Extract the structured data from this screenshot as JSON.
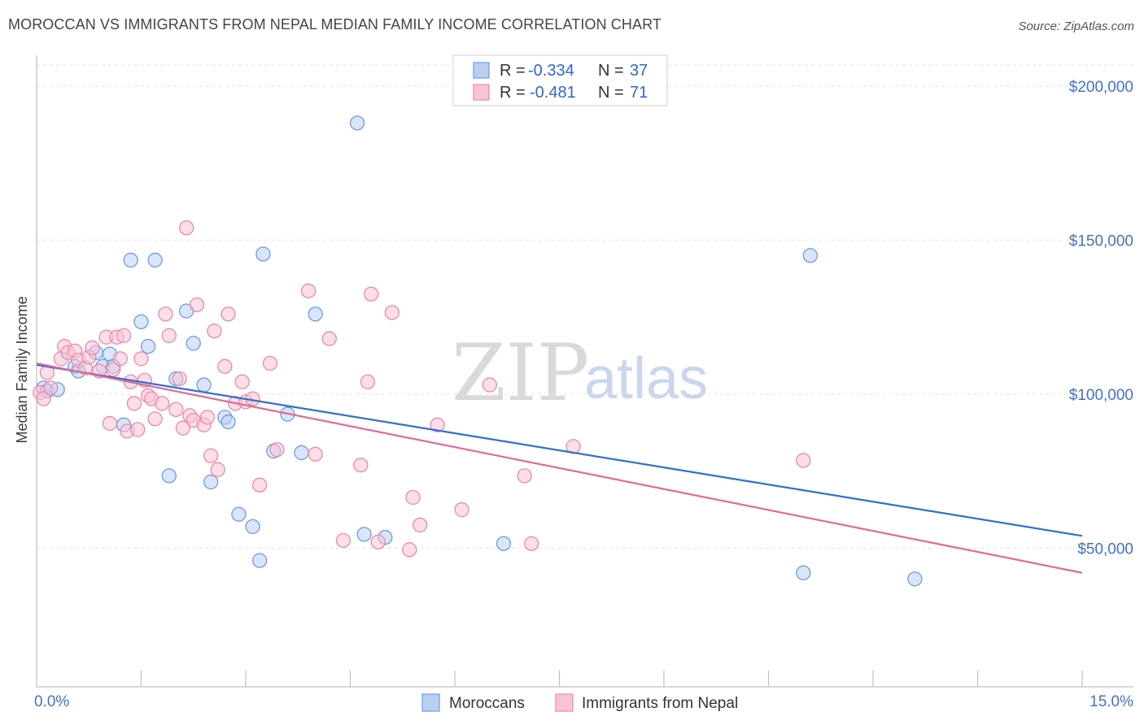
{
  "header": {
    "title": "MOROCCAN VS IMMIGRANTS FROM NEPAL MEDIAN FAMILY INCOME CORRELATION CHART",
    "source": "Source: ZipAtlas.com"
  },
  "watermark": {
    "zip": "ZIP",
    "atlas": "atlas"
  },
  "chart_data": {
    "type": "scatter",
    "xlabel": "",
    "ylabel": "Median Family Income",
    "xlim": [
      0,
      15
    ],
    "ylim": [
      5000,
      210000
    ],
    "x_tick_labels": {
      "min": "0.0%",
      "max": "15.0%"
    },
    "y_ticks": [
      {
        "value": 50000,
        "label": "$50,000"
      },
      {
        "value": 100000,
        "label": "$100,000"
      },
      {
        "value": 150000,
        "label": "$150,000"
      },
      {
        "value": 200000,
        "label": "$200,000"
      }
    ],
    "grid": true,
    "legend_position": "top-center",
    "series": [
      {
        "name": "Moroccans",
        "color": "#6f9be0",
        "fill": "#b9cff2",
        "line_color": "#2f6fd1",
        "stats": {
          "r_label": "R =",
          "r": "-0.334",
          "n_label": "N =",
          "n": "37"
        },
        "trend": {
          "x0": 0,
          "y0": 109500,
          "x1": 15,
          "y1": 54000
        },
        "points": [
          [
            0.1,
            102000
          ],
          [
            0.15,
            101000
          ],
          [
            0.55,
            109000
          ],
          [
            0.6,
            107500
          ],
          [
            0.85,
            113500
          ],
          [
            0.95,
            109000
          ],
          [
            1.05,
            113000
          ],
          [
            1.1,
            109000
          ],
          [
            1.25,
            90000
          ],
          [
            1.35,
            143500
          ],
          [
            1.5,
            123500
          ],
          [
            1.6,
            115500
          ],
          [
            1.7,
            143500
          ],
          [
            1.9,
            73500
          ],
          [
            2.0,
            105000
          ],
          [
            2.15,
            127000
          ],
          [
            2.25,
            116500
          ],
          [
            2.4,
            103000
          ],
          [
            2.5,
            71500
          ],
          [
            2.7,
            92500
          ],
          [
            2.75,
            91000
          ],
          [
            2.9,
            61000
          ],
          [
            3.1,
            57000
          ],
          [
            3.2,
            46000
          ],
          [
            3.25,
            145500
          ],
          [
            3.4,
            81500
          ],
          [
            3.6,
            93500
          ],
          [
            3.8,
            81000
          ],
          [
            4.0,
            126000
          ],
          [
            4.6,
            188000
          ],
          [
            4.7,
            54500
          ],
          [
            5.0,
            53500
          ],
          [
            6.7,
            51500
          ],
          [
            11.1,
            145000
          ],
          [
            11.0,
            42000
          ],
          [
            12.6,
            40000
          ],
          [
            0.3,
            101500
          ]
        ]
      },
      {
        "name": "Immigrants from Nepal",
        "color": "#e88aab",
        "fill": "#f7c3d5",
        "line_color": "#e06a95",
        "stats": {
          "r_label": "R =",
          "r": "-0.481",
          "n_label": "N =",
          "n": "71"
        },
        "trend": {
          "x0": 0,
          "y0": 110000,
          "x1": 15,
          "y1": 42000
        },
        "points": [
          [
            0.05,
            100500
          ],
          [
            0.1,
            98500
          ],
          [
            0.15,
            107000
          ],
          [
            0.2,
            102000
          ],
          [
            0.35,
            111500
          ],
          [
            0.4,
            115500
          ],
          [
            0.45,
            113500
          ],
          [
            0.55,
            114000
          ],
          [
            0.6,
            111000
          ],
          [
            0.7,
            108500
          ],
          [
            0.75,
            112000
          ],
          [
            0.8,
            115000
          ],
          [
            0.9,
            107500
          ],
          [
            1.0,
            118500
          ],
          [
            1.05,
            90500
          ],
          [
            1.1,
            108000
          ],
          [
            1.15,
            118500
          ],
          [
            1.2,
            111500
          ],
          [
            1.25,
            119000
          ],
          [
            1.3,
            88000
          ],
          [
            1.35,
            104000
          ],
          [
            1.4,
            97000
          ],
          [
            1.45,
            88500
          ],
          [
            1.5,
            111500
          ],
          [
            1.55,
            104500
          ],
          [
            1.6,
            99500
          ],
          [
            1.65,
            98500
          ],
          [
            1.7,
            92000
          ],
          [
            1.8,
            97000
          ],
          [
            1.85,
            126000
          ],
          [
            1.9,
            119000
          ],
          [
            2.0,
            95000
          ],
          [
            2.05,
            105000
          ],
          [
            2.1,
            89000
          ],
          [
            2.15,
            154000
          ],
          [
            2.2,
            93000
          ],
          [
            2.25,
            91500
          ],
          [
            2.3,
            129000
          ],
          [
            2.4,
            90000
          ],
          [
            2.45,
            92500
          ],
          [
            2.5,
            80000
          ],
          [
            2.55,
            120500
          ],
          [
            2.6,
            75500
          ],
          [
            2.7,
            109000
          ],
          [
            2.75,
            126000
          ],
          [
            2.85,
            97000
          ],
          [
            2.95,
            104000
          ],
          [
            3.0,
            97500
          ],
          [
            3.1,
            98500
          ],
          [
            3.2,
            70500
          ],
          [
            3.35,
            110000
          ],
          [
            3.45,
            82000
          ],
          [
            3.9,
            133500
          ],
          [
            4.0,
            80500
          ],
          [
            4.2,
            118000
          ],
          [
            4.4,
            52500
          ],
          [
            4.65,
            77000
          ],
          [
            4.75,
            104000
          ],
          [
            4.8,
            132500
          ],
          [
            4.9,
            52000
          ],
          [
            5.1,
            126500
          ],
          [
            5.35,
            49500
          ],
          [
            5.4,
            66500
          ],
          [
            5.5,
            57500
          ],
          [
            5.75,
            90000
          ],
          [
            6.1,
            62500
          ],
          [
            6.5,
            103000
          ],
          [
            7.0,
            73500
          ],
          [
            7.1,
            51500
          ],
          [
            7.7,
            83000
          ],
          [
            11.0,
            78500
          ]
        ]
      }
    ]
  },
  "bottom_legend": {
    "moroccans": "Moroccans",
    "nepal": "Immigrants from Nepal"
  }
}
